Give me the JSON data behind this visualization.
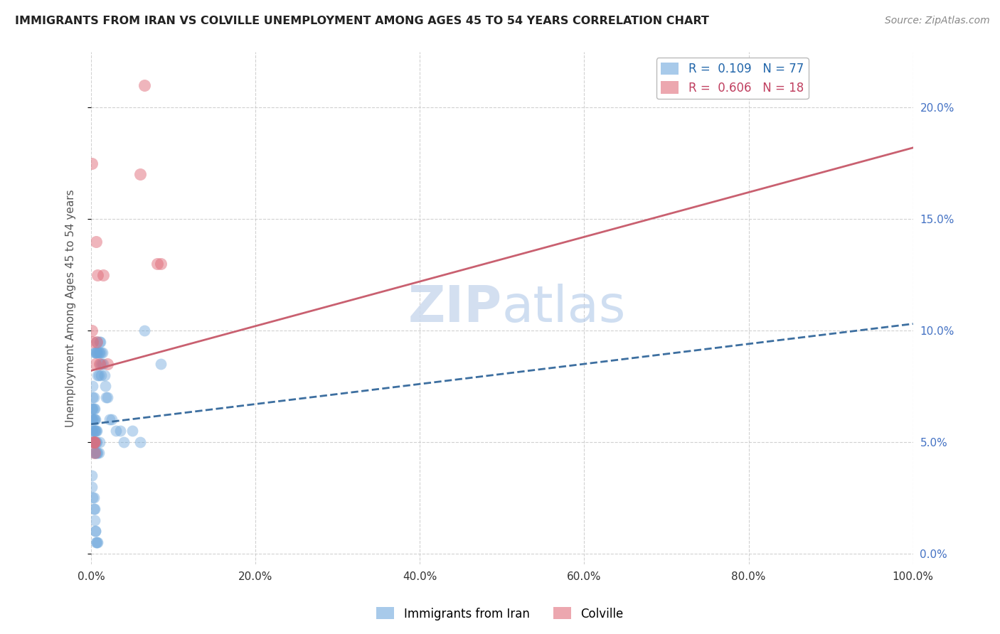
{
  "title": "IMMIGRANTS FROM IRAN VS COLVILLE UNEMPLOYMENT AMONG AGES 45 TO 54 YEARS CORRELATION CHART",
  "source": "Source: ZipAtlas.com",
  "ylabel": "Unemployment Among Ages 45 to 54 years",
  "xlim": [
    0,
    1.0
  ],
  "ylim": [
    -0.005,
    0.225
  ],
  "legend_entries": [
    {
      "label": "R =  0.109   N = 77"
    },
    {
      "label": "R =  0.606   N = 18"
    }
  ],
  "legend_labels": [
    "Immigrants from Iran",
    "Colville"
  ],
  "blue_scatter_x": [
    0.001,
    0.001,
    0.001,
    0.001,
    0.002,
    0.002,
    0.002,
    0.002,
    0.002,
    0.002,
    0.003,
    0.003,
    0.003,
    0.003,
    0.003,
    0.003,
    0.004,
    0.004,
    0.004,
    0.004,
    0.004,
    0.004,
    0.005,
    0.005,
    0.005,
    0.005,
    0.005,
    0.006,
    0.006,
    0.006,
    0.006,
    0.007,
    0.007,
    0.007,
    0.007,
    0.007,
    0.008,
    0.008,
    0.008,
    0.009,
    0.009,
    0.009,
    0.01,
    0.01,
    0.01,
    0.011,
    0.011,
    0.012,
    0.012,
    0.013,
    0.014,
    0.015,
    0.016,
    0.017,
    0.018,
    0.02,
    0.022,
    0.025,
    0.03,
    0.035,
    0.04,
    0.05,
    0.06,
    0.065,
    0.085,
    0.001,
    0.001,
    0.002,
    0.003,
    0.003,
    0.004,
    0.004,
    0.005,
    0.005,
    0.006,
    0.007,
    0.008
  ],
  "blue_scatter_y": [
    0.05,
    0.055,
    0.06,
    0.065,
    0.05,
    0.055,
    0.06,
    0.065,
    0.07,
    0.075,
    0.045,
    0.05,
    0.055,
    0.06,
    0.065,
    0.07,
    0.045,
    0.05,
    0.055,
    0.06,
    0.065,
    0.09,
    0.045,
    0.05,
    0.055,
    0.06,
    0.09,
    0.045,
    0.05,
    0.055,
    0.09,
    0.045,
    0.05,
    0.055,
    0.09,
    0.095,
    0.045,
    0.08,
    0.09,
    0.045,
    0.08,
    0.09,
    0.05,
    0.09,
    0.095,
    0.085,
    0.095,
    0.08,
    0.09,
    0.085,
    0.09,
    0.085,
    0.08,
    0.075,
    0.07,
    0.07,
    0.06,
    0.06,
    0.055,
    0.055,
    0.05,
    0.055,
    0.05,
    0.1,
    0.085,
    0.035,
    0.03,
    0.025,
    0.025,
    0.02,
    0.02,
    0.015,
    0.01,
    0.01,
    0.005,
    0.005,
    0.005
  ],
  "pink_scatter_x": [
    0.001,
    0.001,
    0.002,
    0.003,
    0.003,
    0.004,
    0.004,
    0.005,
    0.006,
    0.007,
    0.008,
    0.01,
    0.015,
    0.02,
    0.06,
    0.065,
    0.08,
    0.085
  ],
  "pink_scatter_y": [
    0.175,
    0.1,
    0.095,
    0.05,
    0.05,
    0.045,
    0.05,
    0.085,
    0.14,
    0.095,
    0.125,
    0.085,
    0.125,
    0.085,
    0.17,
    0.21,
    0.13,
    0.13
  ],
  "blue_line_x0": 0.0,
  "blue_line_x1": 1.0,
  "blue_line_y0": 0.058,
  "blue_line_y1": 0.103,
  "pink_line_x0": 0.0,
  "pink_line_x1": 1.0,
  "pink_line_y0": 0.082,
  "pink_line_y1": 0.182,
  "blue_scatter_color": "#6fa8dc",
  "pink_scatter_color": "#e06c7a",
  "blue_line_color": "#3d6fa0",
  "pink_line_color": "#c96070",
  "background_color": "#ffffff",
  "grid_color": "#cccccc",
  "title_color": "#222222",
  "axis_label_color": "#555555",
  "tick_color_right": "#4472c4",
  "tick_color_left": "#333333",
  "legend_box_blue": "#6fa8dc",
  "legend_box_pink": "#e06c7a",
  "legend_text_blue": "#2266aa",
  "legend_text_pink": "#c04060",
  "watermark_color": "#ccdaee",
  "source_color": "#888888"
}
